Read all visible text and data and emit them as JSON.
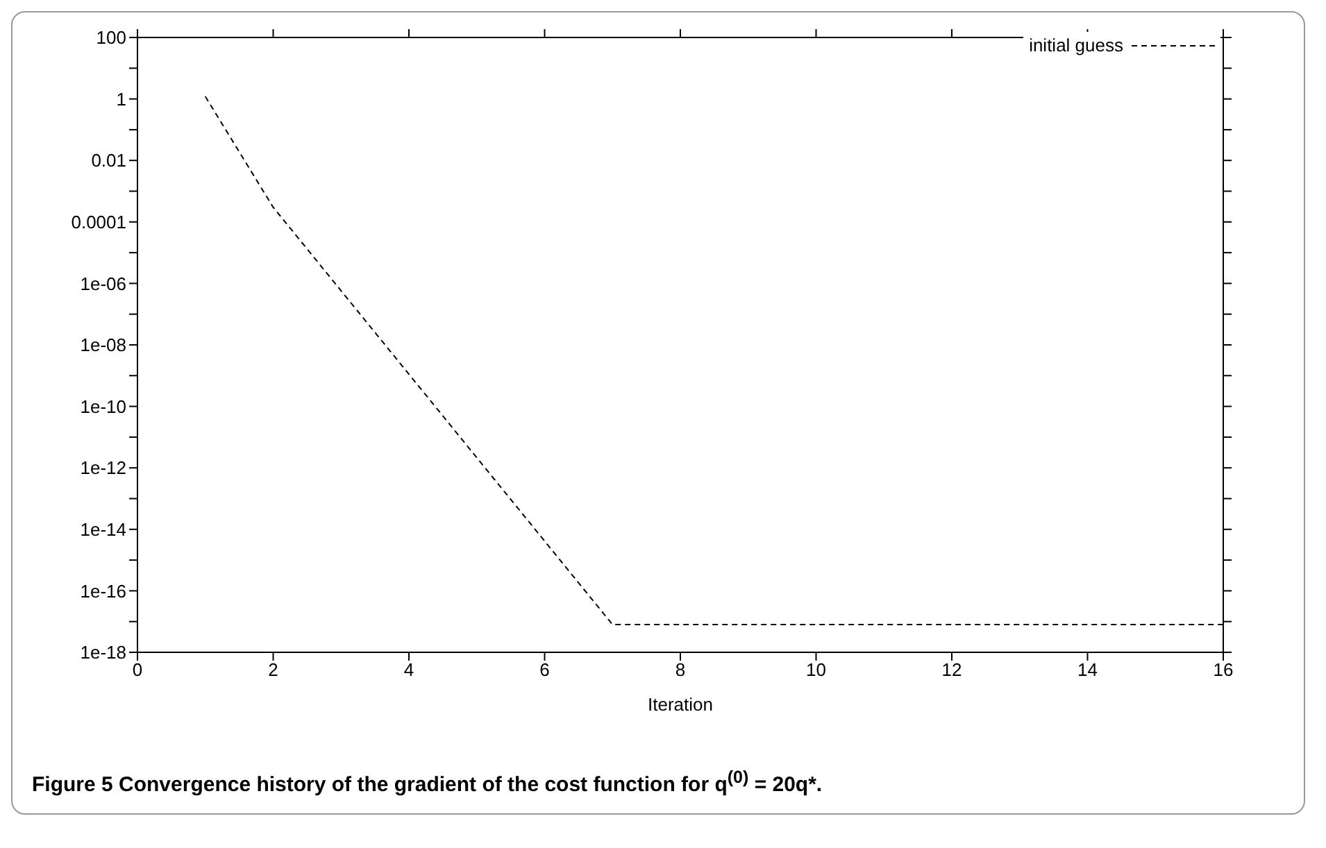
{
  "chart_data": {
    "type": "line",
    "xlabel": "Iteration",
    "annotations": [
      "Figure 5  Convergence history of the gradient of the cost function for q$^{(0)}$ = 20q*."
    ],
    "x": [
      1,
      2,
      7,
      8,
      9,
      10,
      11,
      12,
      13,
      14,
      15,
      16
    ],
    "series": [
      {
        "name": "initial guess",
        "color": "#000000",
        "values": [
          1.2,
          0.0003,
          8e-18,
          8e-18,
          8e-18,
          8e-18,
          8e-18,
          8e-18,
          8e-18,
          8e-18,
          8e-18,
          8e-18
        ]
      }
    ],
    "log": "y",
    "xlim": [
      0,
      16
    ],
    "xticks": [
      0,
      2,
      4,
      6,
      8,
      10,
      12,
      14,
      16
    ],
    "ylim": [
      1e-18,
      100
    ],
    "yticks": [
      100,
      {
        "value": 10,
        "label": null
      },
      1,
      {
        "value": 0.1,
        "label": null
      },
      0.01,
      {
        "value": 0.001,
        "label": null
      },
      0.0001,
      {
        "value": 1e-05,
        "label": null
      },
      {
        "value": 1e-06,
        "label": "1e-06"
      },
      {
        "value": 1e-07,
        "label": null
      },
      {
        "value": 1e-08,
        "label": "1e-08"
      },
      {
        "value": 1e-09,
        "label": null
      },
      {
        "value": 1e-10,
        "label": "1e-10"
      },
      {
        "value": 1e-11,
        "label": null
      },
      {
        "value": 1e-12,
        "label": "1e-12"
      },
      {
        "value": 1e-13,
        "label": null
      },
      {
        "value": 1e-14,
        "label": "1e-14"
      },
      {
        "value": 1e-15,
        "label": null
      },
      {
        "value": 1e-16,
        "label": "1e-16"
      },
      {
        "value": 1e-17,
        "label": null
      },
      {
        "value": 1e-18,
        "label": "1e-18"
      }
    ],
    "grid": false,
    "legend": "top right",
    "marker": "none",
    "line_style": "dashed"
  }
}
